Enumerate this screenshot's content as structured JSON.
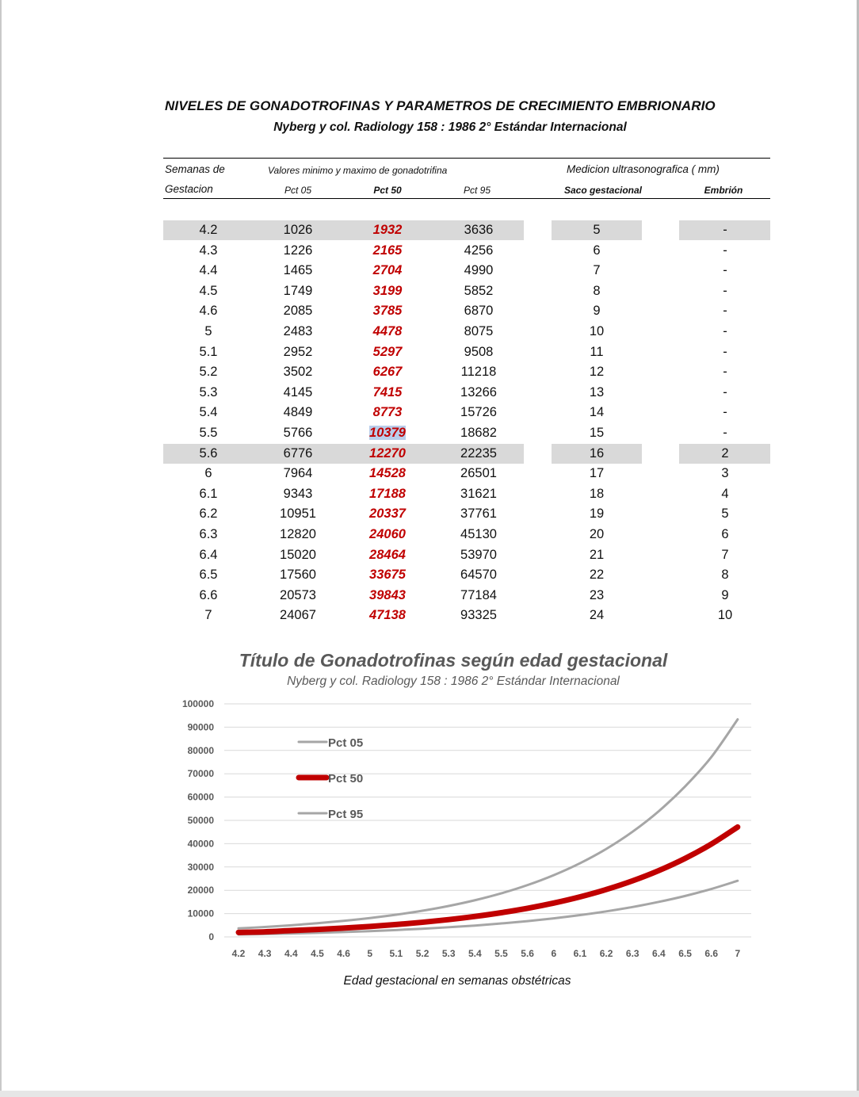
{
  "document": {
    "title": "NIVELES DE GONADOTROFINAS Y PARAMETROS DE CRECIMIENTO EMBRIONARIO",
    "subtitle": "Nyberg y col. Radiology 158 :  1986  2° Estándar Internacional"
  },
  "table": {
    "header": {
      "semanas_line1": "Semanas de",
      "semanas_line2": "Gestacion",
      "gonado_group": "Valores minimo y maximo de gonadotrifina",
      "pct05": "Pct 05",
      "pct50": "Pct 50",
      "pct95": "Pct 95",
      "ultra_group": "Medicion ultrasonografica ( mm)",
      "saco": "Saco gestacional",
      "embrion": "Embrión"
    },
    "rows": [
      {
        "week": "4.2",
        "p05": "1026",
        "p50": "1932",
        "p95": "3636",
        "saco": "5",
        "embrion": "-"
      },
      {
        "week": "4.3",
        "p05": "1226",
        "p50": "2165",
        "p95": "4256",
        "saco": "6",
        "embrion": "-"
      },
      {
        "week": "4.4",
        "p05": "1465",
        "p50": "2704",
        "p95": "4990",
        "saco": "7",
        "embrion": "-"
      },
      {
        "week": "4.5",
        "p05": "1749",
        "p50": "3199",
        "p95": "5852",
        "saco": "8",
        "embrion": "-"
      },
      {
        "week": "4.6",
        "p05": "2085",
        "p50": "3785",
        "p95": "6870",
        "saco": "9",
        "embrion": "-"
      },
      {
        "week": "5",
        "p05": "2483",
        "p50": "4478",
        "p95": "8075",
        "saco": "10",
        "embrion": "-"
      },
      {
        "week": "5.1",
        "p05": "2952",
        "p50": "5297",
        "p95": "9508",
        "saco": "11",
        "embrion": "-"
      },
      {
        "week": "5.2",
        "p05": "3502",
        "p50": "6267",
        "p95": "11218",
        "saco": "12",
        "embrion": "-"
      },
      {
        "week": "5.3",
        "p05": "4145",
        "p50": "7415",
        "p95": "13266",
        "saco": "13",
        "embrion": "-"
      },
      {
        "week": "5.4",
        "p05": "4849",
        "p50": "8773",
        "p95": "15726",
        "saco": "14",
        "embrion": "-"
      },
      {
        "week": "5.5",
        "p05": "5766",
        "p50": "10379",
        "p95": "18682",
        "saco": "15",
        "embrion": "-"
      },
      {
        "week": "5.6",
        "p05": "6776",
        "p50": "12270",
        "p95": "22235",
        "saco": "16",
        "embrion": "2"
      },
      {
        "week": "6",
        "p05": "7964",
        "p50": "14528",
        "p95": "26501",
        "saco": "17",
        "embrion": "3"
      },
      {
        "week": "6.1",
        "p05": "9343",
        "p50": "17188",
        "p95": "31621",
        "saco": "18",
        "embrion": "4"
      },
      {
        "week": "6.2",
        "p05": "10951",
        "p50": "20337",
        "p95": "37761",
        "saco": "19",
        "embrion": "5"
      },
      {
        "week": "6.3",
        "p05": "12820",
        "p50": "24060",
        "p95": "45130",
        "saco": "20",
        "embrion": "6"
      },
      {
        "week": "6.4",
        "p05": "15020",
        "p50": "28464",
        "p95": "53970",
        "saco": "21",
        "embrion": "7"
      },
      {
        "week": "6.5",
        "p05": "17560",
        "p50": "33675",
        "p95": "64570",
        "saco": "22",
        "embrion": "8"
      },
      {
        "week": "6.6",
        "p05": "20573",
        "p50": "39843",
        "p95": "77184",
        "saco": "23",
        "embrion": "9"
      },
      {
        "week": "7",
        "p05": "24067",
        "p50": "47138",
        "p95": "93325",
        "saco": "24",
        "embrion": "10"
      }
    ],
    "shaded_row_indices": [
      0,
      11
    ],
    "selected_cell": {
      "row": 10,
      "column": "p50"
    }
  },
  "chart_data": {
    "type": "line",
    "title": "Título de Gonadotrofinas según edad gestacional",
    "subtitle": "Nyberg y col. Radiology 158 :  1986  2° Estándar Internacional",
    "xlabel": "Edad gestacional en semanas obstétricas",
    "ylabel": "",
    "categories": [
      "4.2",
      "4.3",
      "4.4",
      "4.5",
      "4.6",
      "5",
      "5.1",
      "5.2",
      "5.3",
      "5.4",
      "5.5",
      "5.6",
      "6",
      "6.1",
      "6.2",
      "6.3",
      "6.4",
      "6.5",
      "6.6",
      "7"
    ],
    "ylim": [
      0,
      100000
    ],
    "yticks": [
      0,
      10000,
      20000,
      30000,
      40000,
      50000,
      60000,
      70000,
      80000,
      90000,
      100000
    ],
    "grid": true,
    "legend_position": "upper-left, inside plot",
    "series": [
      {
        "name": "Pct 05",
        "color": "#a6a6a6",
        "width": "thin",
        "values": [
          1026,
          1226,
          1465,
          1749,
          2085,
          2483,
          2952,
          3502,
          4145,
          4849,
          5766,
          6776,
          7964,
          9343,
          10951,
          12820,
          15020,
          17560,
          20573,
          24067
        ]
      },
      {
        "name": "Pct 50",
        "color": "#c00000",
        "width": "thick",
        "values": [
          1932,
          2165,
          2704,
          3199,
          3785,
          4478,
          5297,
          6267,
          7415,
          8773,
          10379,
          12270,
          14528,
          17188,
          20337,
          24060,
          28464,
          33675,
          39843,
          47138
        ]
      },
      {
        "name": "Pct 95",
        "color": "#a6a6a6",
        "width": "thin",
        "values": [
          3636,
          4256,
          4990,
          5852,
          6870,
          8075,
          9508,
          11218,
          13266,
          15726,
          18682,
          22235,
          26501,
          31621,
          37761,
          45130,
          53970,
          64570,
          77184,
          93325
        ]
      }
    ]
  }
}
